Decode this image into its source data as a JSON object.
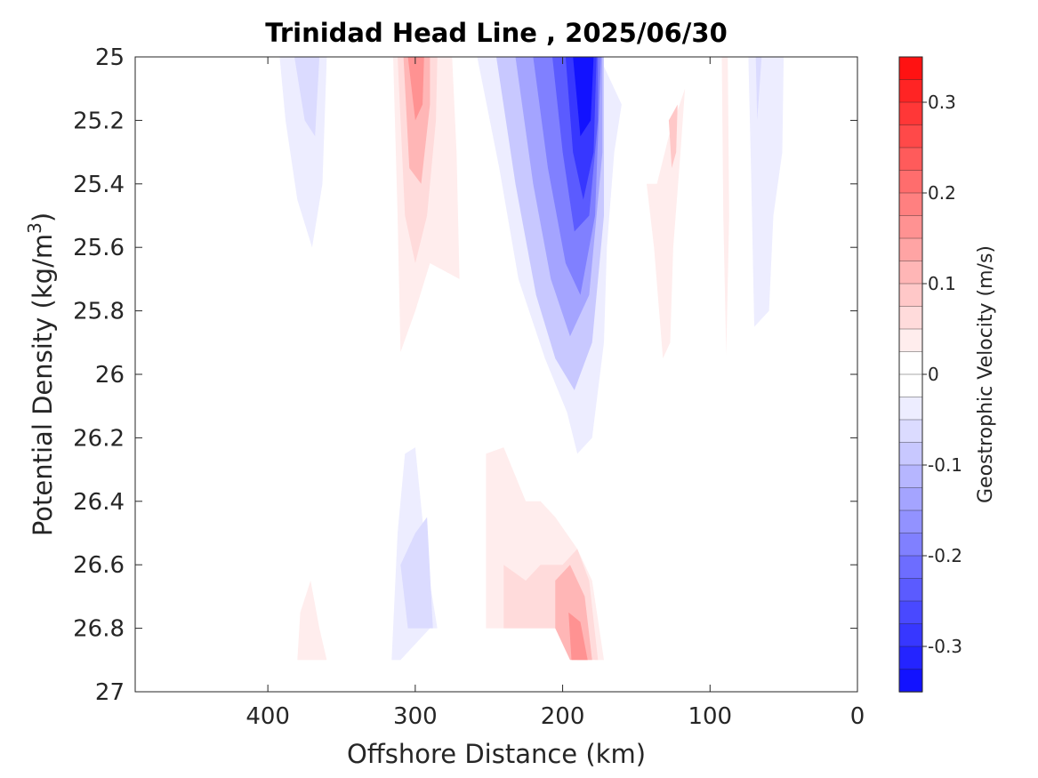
{
  "chart_data": {
    "type": "heatmap",
    "subtype": "filled-contour",
    "title": "Trinidad Head Line , 2025/06/30",
    "xlabel": "Offshore Distance (km)",
    "ylabel_prefix": "Potential Density (kg/m",
    "ylabel_sup": "3",
    "ylabel_suffix": ")",
    "xlim": [
      490,
      0
    ],
    "x_reversed": true,
    "x_ticks": [
      400,
      300,
      200,
      100,
      0
    ],
    "x_tick_labels": [
      "400",
      "300",
      "200",
      "100",
      "0"
    ],
    "ylim": [
      25,
      27
    ],
    "y_reversed": true,
    "y_ticks": [
      25,
      25.2,
      25.4,
      25.6,
      25.8,
      26,
      26.2,
      26.4,
      26.6,
      26.8,
      27
    ],
    "y_tick_labels": [
      "25",
      "25.2",
      "25.4",
      "25.6",
      "25.8",
      "26",
      "26.2",
      "26.4",
      "26.6",
      "26.8",
      "27"
    ],
    "colorbar": {
      "label": "Geostrophic Velocity (m/s)",
      "min": -0.35,
      "max": 0.35,
      "step": 0.025,
      "ticks": [
        0.3,
        0.2,
        0.1,
        0,
        -0.1,
        -0.2,
        -0.3
      ],
      "tick_labels": [
        "0.3",
        "0.2",
        "0.1",
        "0",
        "-0.1",
        "-0.2",
        "-0.3"
      ],
      "neg_color": "#0000ff",
      "pos_color": "#ff0000",
      "zero_color": "#ffffff"
    },
    "regions": [
      {
        "name": "neg-jet-200km",
        "sign": -1,
        "x_center": 190,
        "sigma_top": 25.0,
        "sigma_bottom": 26.25,
        "core_velocity": -0.3,
        "layers": [
          {
            "level": 1,
            "points": [
              [
                258,
                25.0
              ],
              [
                243,
                25.35
              ],
              [
                230,
                25.7
              ],
              [
                212,
                25.95
              ],
              [
                197,
                26.12
              ],
              [
                190,
                26.25
              ],
              [
                180,
                26.2
              ],
              [
                172,
                25.9
              ],
              [
                170,
                25.6
              ],
              [
                165,
                25.3
              ],
              [
                160,
                25.15
              ],
              [
                175,
                25.0
              ]
            ]
          },
          {
            "level": 3,
            "points": [
              [
                245,
                25.0
              ],
              [
                232,
                25.4
              ],
              [
                218,
                25.75
              ],
              [
                205,
                25.95
              ],
              [
                192,
                26.05
              ],
              [
                180,
                25.9
              ],
              [
                172,
                25.5
              ],
              [
                172,
                25.0
              ]
            ]
          },
          {
            "level": 5,
            "points": [
              [
                232,
                25.0
              ],
              [
                220,
                25.4
              ],
              [
                208,
                25.7
              ],
              [
                195,
                25.88
              ],
              [
                182,
                25.75
              ],
              [
                173,
                25.3
              ],
              [
                173,
                25.0
              ]
            ]
          },
          {
            "level": 7,
            "points": [
              [
                220,
                25.0
              ],
              [
                210,
                25.35
              ],
              [
                198,
                25.65
              ],
              [
                188,
                25.75
              ],
              [
                178,
                25.5
              ],
              [
                174,
                25.0
              ]
            ]
          },
          {
            "level": 9,
            "points": [
              [
                207,
                25.0
              ],
              [
                200,
                25.3
              ],
              [
                192,
                25.55
              ],
              [
                182,
                25.5
              ],
              [
                176,
                25.2
              ],
              [
                176,
                25.0
              ]
            ]
          },
          {
            "level": 11,
            "points": [
              [
                198,
                25.0
              ],
              [
                193,
                25.3
              ],
              [
                186,
                25.45
              ],
              [
                179,
                25.3
              ],
              [
                177,
                25.0
              ]
            ]
          },
          {
            "level": 13,
            "points": [
              [
                193,
                25.0
              ],
              [
                188,
                25.25
              ],
              [
                181,
                25.2
              ],
              [
                179,
                25.0
              ]
            ]
          }
        ]
      },
      {
        "name": "pos-300km-upper",
        "sign": 1,
        "x_center": 295,
        "sigma_top": 25.0,
        "sigma_bottom": 25.93,
        "core_velocity": 0.2,
        "layers": [
          {
            "level": 1,
            "points": [
              [
                315,
                25.0
              ],
              [
                312,
                25.5
              ],
              [
                310,
                25.93
              ],
              [
                300,
                25.8
              ],
              [
                290,
                25.65
              ],
              [
                270,
                25.7
              ],
              [
                272,
                25.3
              ],
              [
                275,
                25.0
              ]
            ]
          },
          {
            "level": 2,
            "points": [
              [
                312,
                25.0
              ],
              [
                307,
                25.5
              ],
              [
                300,
                25.65
              ],
              [
                292,
                25.5
              ],
              [
                286,
                25.2
              ],
              [
                285,
                25.0
              ]
            ]
          },
          {
            "level": 4,
            "points": [
              [
                308,
                25.0
              ],
              [
                304,
                25.35
              ],
              [
                296,
                25.4
              ],
              [
                290,
                25.15
              ],
              [
                290,
                25.0
              ]
            ]
          },
          {
            "level": 6,
            "points": [
              [
                305,
                25.0
              ],
              [
                300,
                25.2
              ],
              [
                295,
                25.15
              ],
              [
                294,
                25.0
              ]
            ]
          }
        ]
      },
      {
        "name": "neg-370km",
        "sign": -1,
        "x_center": 370,
        "sigma_top": 25.0,
        "sigma_bottom": 25.6,
        "layers": [
          {
            "level": 1,
            "points": [
              [
                392,
                25.0
              ],
              [
                388,
                25.2
              ],
              [
                380,
                25.45
              ],
              [
                370,
                25.6
              ],
              [
                363,
                25.4
              ],
              [
                360,
                25.0
              ]
            ]
          },
          {
            "level": 2,
            "points": [
              [
                382,
                25.0
              ],
              [
                375,
                25.2
              ],
              [
                368,
                25.25
              ],
              [
                365,
                25.0
              ]
            ]
          }
        ]
      },
      {
        "name": "neg-60km",
        "sign": -1,
        "x_center": 65,
        "sigma_top": 25.0,
        "sigma_bottom": 25.85,
        "layers": [
          {
            "level": 1,
            "points": [
              [
                74,
                25.0
              ],
              [
                72,
                25.4
              ],
              [
                70,
                25.85
              ],
              [
                60,
                25.8
              ],
              [
                57,
                25.5
              ],
              [
                51,
                25.3
              ],
              [
                50,
                25.0
              ]
            ]
          },
          {
            "level": 2,
            "points": [
              [
                69,
                25.0
              ],
              [
                68,
                25.2
              ],
              [
                65,
                25.0
              ]
            ]
          }
        ]
      },
      {
        "name": "pos-130km",
        "sign": 1,
        "x_center": 130,
        "sigma_top": 25.1,
        "sigma_bottom": 25.98,
        "layers": [
          {
            "level": 1,
            "points": [
              [
                143,
                25.4
              ],
              [
                138,
                25.6
              ],
              [
                132,
                25.95
              ],
              [
                127,
                25.9
              ],
              [
                125,
                25.6
              ],
              [
                120,
                25.3
              ],
              [
                117,
                25.1
              ],
              [
                128,
                25.25
              ],
              [
                136,
                25.4
              ]
            ]
          },
          {
            "level": 3,
            "points": [
              [
                128,
                25.2
              ],
              [
                126,
                25.35
              ],
              [
                123,
                25.3
              ],
              [
                122,
                25.15
              ]
            ]
          }
        ]
      },
      {
        "name": "pos-90km",
        "sign": 1,
        "x_center": 90,
        "sigma_top": 25.0,
        "sigma_bottom": 25.94,
        "layers": [
          {
            "level": 1,
            "points": [
              [
                92,
                25.0
              ],
              [
                91,
                25.5
              ],
              [
                89,
                25.94
              ],
              [
                87,
                25.5
              ],
              [
                88,
                25.0
              ]
            ]
          }
        ]
      },
      {
        "name": "neg-290km-lower",
        "sign": -1,
        "x_center": 290,
        "sigma_top": 26.23,
        "sigma_bottom": 26.9,
        "layers": [
          {
            "level": 1,
            "points": [
              [
                307,
                26.25
              ],
              [
                300,
                26.23
              ],
              [
                292,
                26.6
              ],
              [
                285,
                26.8
              ],
              [
                270,
                26.8
              ],
              [
                290,
                26.8
              ],
              [
                310,
                26.9
              ],
              [
                316,
                26.9
              ],
              [
                312,
                26.5
              ]
            ]
          },
          {
            "level": 2,
            "points": [
              [
                300,
                26.5
              ],
              [
                292,
                26.45
              ],
              [
                288,
                26.8
              ],
              [
                305,
                26.8
              ],
              [
                310,
                26.6
              ]
            ]
          }
        ]
      },
      {
        "name": "pos-200km-lower",
        "sign": 1,
        "x_center": 200,
        "sigma_top": 26.23,
        "sigma_bottom": 26.9,
        "core_velocity": 0.15,
        "layers": [
          {
            "level": 1,
            "points": [
              [
                252,
                26.25
              ],
              [
                240,
                26.23
              ],
              [
                225,
                26.4
              ],
              [
                215,
                26.4
              ],
              [
                205,
                26.45
              ],
              [
                190,
                26.55
              ],
              [
                180,
                26.65
              ],
              [
                172,
                26.9
              ],
              [
                178,
                26.9
              ],
              [
                190,
                26.8
              ],
              [
                205,
                26.8
              ],
              [
                252,
                26.8
              ]
            ]
          },
          {
            "level": 2,
            "points": [
              [
                240,
                26.6
              ],
              [
                225,
                26.65
              ],
              [
                215,
                26.6
              ],
              [
                200,
                26.6
              ],
              [
                190,
                26.55
              ],
              [
                182,
                26.65
              ],
              [
                176,
                26.9
              ],
              [
                190,
                26.9
              ],
              [
                205,
                26.8
              ],
              [
                240,
                26.8
              ]
            ]
          },
          {
            "level": 4,
            "points": [
              [
                205,
                26.65
              ],
              [
                195,
                26.6
              ],
              [
                185,
                26.7
              ],
              [
                180,
                26.9
              ],
              [
                195,
                26.9
              ],
              [
                205,
                26.8
              ]
            ]
          },
          {
            "level": 6,
            "points": [
              [
                196,
                26.75
              ],
              [
                188,
                26.78
              ],
              [
                183,
                26.9
              ],
              [
                194,
                26.9
              ]
            ]
          }
        ]
      },
      {
        "name": "pos-370km-lower",
        "sign": 1,
        "x_center": 370,
        "sigma_top": 26.65,
        "sigma_bottom": 26.9,
        "layers": [
          {
            "level": 1,
            "points": [
              [
                380,
                26.9
              ],
              [
                378,
                26.75
              ],
              [
                371,
                26.65
              ],
              [
                365,
                26.8
              ],
              [
                360,
                26.9
              ]
            ]
          }
        ]
      }
    ]
  }
}
